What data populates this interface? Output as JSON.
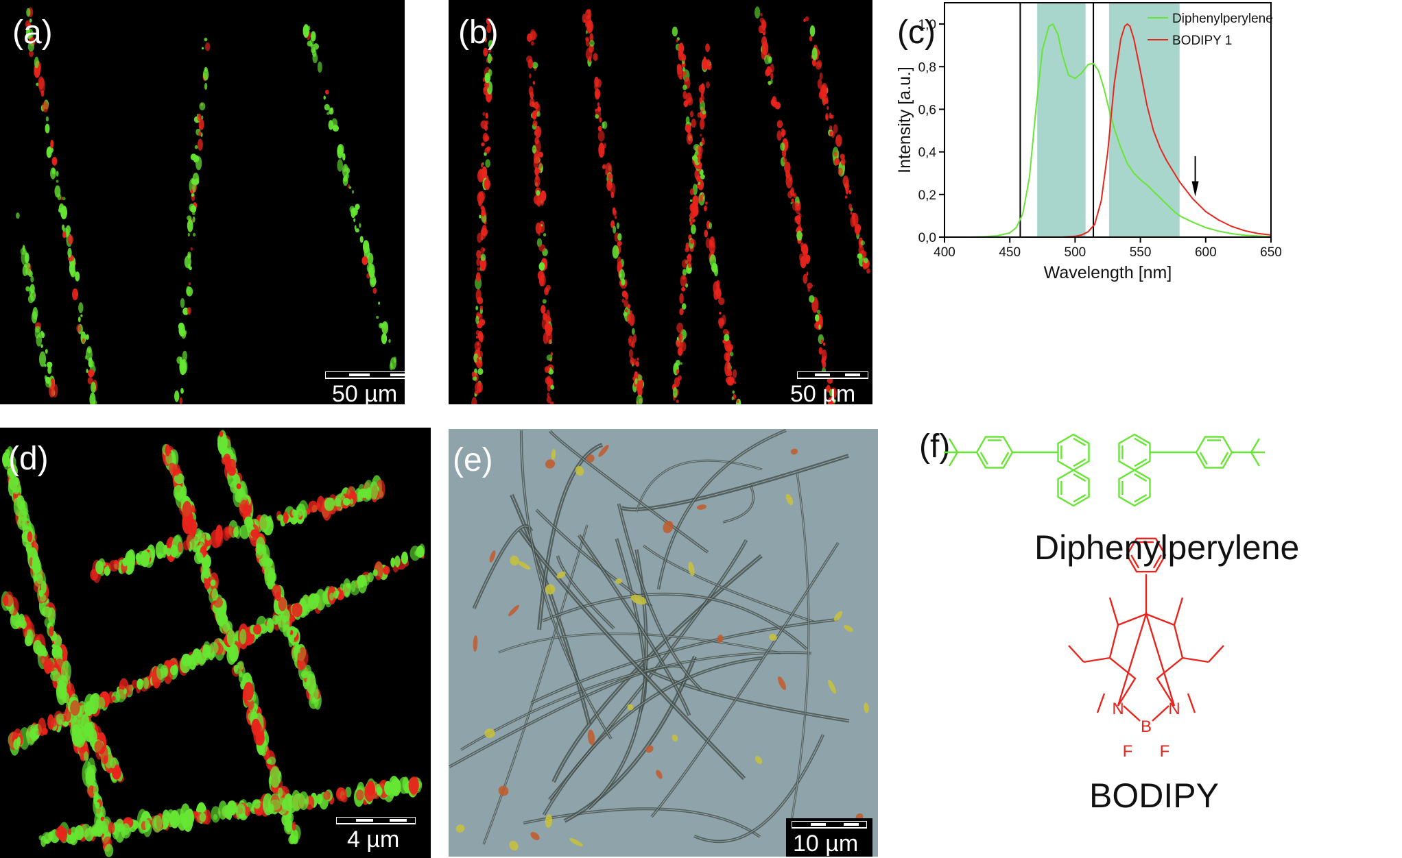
{
  "panels": {
    "a": {
      "label": "(a)",
      "scale": "50 µm"
    },
    "b": {
      "label": "(b)",
      "scale": "50 µm"
    },
    "c": {
      "label": "(c)"
    },
    "d": {
      "label": "(d)",
      "scale": "4 µm"
    },
    "e": {
      "label": "(e)",
      "scale": "10 µm"
    },
    "f": {
      "label": "(f)"
    }
  },
  "chemistry": {
    "compound1": "Diphenylperylene",
    "compound2": "BODIPY",
    "atom_n": "N",
    "atom_b": "B",
    "atom_f": "F"
  },
  "colors": {
    "green": "#66e633",
    "red": "#e8241c",
    "band": "#a9d6cc",
    "background": "#000000"
  },
  "chart_data": {
    "type": "line",
    "xlabel": "Wavelength [nm]",
    "ylabel": "Intensity [a.u.]",
    "xlim": [
      400,
      650
    ],
    "ylim": [
      0.0,
      1.1
    ],
    "xticks": [
      400,
      450,
      500,
      550,
      600,
      650
    ],
    "yticks": [
      "0,0",
      "0,2",
      "0,4",
      "0,6",
      "0,8",
      "1,0"
    ],
    "ytick_values": [
      0.0,
      0.2,
      0.4,
      0.6,
      0.8,
      1.0
    ],
    "legend_position": "top-right",
    "excitation_lines_nm": [
      458,
      514
    ],
    "shaded_bands_nm": [
      [
        471,
        508
      ],
      [
        526,
        580
      ]
    ],
    "arrow_nm": 592,
    "series": [
      {
        "name": "Diphenylperylene",
        "color": "#66e633",
        "x": [
          420,
          430,
          440,
          450,
          455,
          460,
          465,
          470,
          475,
          480,
          483,
          487,
          490,
          495,
          500,
          505,
          510,
          514,
          518,
          522,
          526,
          530,
          535,
          540,
          545,
          550,
          555,
          560,
          565,
          570,
          575,
          580,
          590,
          600,
          610,
          620,
          630,
          640,
          650
        ],
        "y": [
          0.0,
          0.002,
          0.006,
          0.02,
          0.045,
          0.11,
          0.28,
          0.6,
          0.88,
          0.99,
          1.0,
          0.95,
          0.86,
          0.76,
          0.745,
          0.77,
          0.81,
          0.815,
          0.78,
          0.7,
          0.6,
          0.51,
          0.42,
          0.345,
          0.3,
          0.27,
          0.245,
          0.215,
          0.185,
          0.155,
          0.125,
          0.1,
          0.07,
          0.045,
          0.028,
          0.016,
          0.009,
          0.005,
          0.003
        ]
      },
      {
        "name": "BODIPY 1",
        "color": "#e8241c",
        "x": [
          490,
          500,
          505,
          510,
          515,
          520,
          525,
          530,
          535,
          538,
          540,
          542,
          545,
          550,
          555,
          560,
          565,
          570,
          575,
          580,
          590,
          600,
          610,
          620,
          630,
          640,
          650
        ],
        "y": [
          0.0,
          0.004,
          0.01,
          0.025,
          0.06,
          0.17,
          0.4,
          0.72,
          0.93,
          0.99,
          1.0,
          0.99,
          0.93,
          0.78,
          0.62,
          0.5,
          0.42,
          0.36,
          0.31,
          0.26,
          0.18,
          0.12,
          0.08,
          0.05,
          0.03,
          0.017,
          0.01
        ]
      }
    ]
  }
}
